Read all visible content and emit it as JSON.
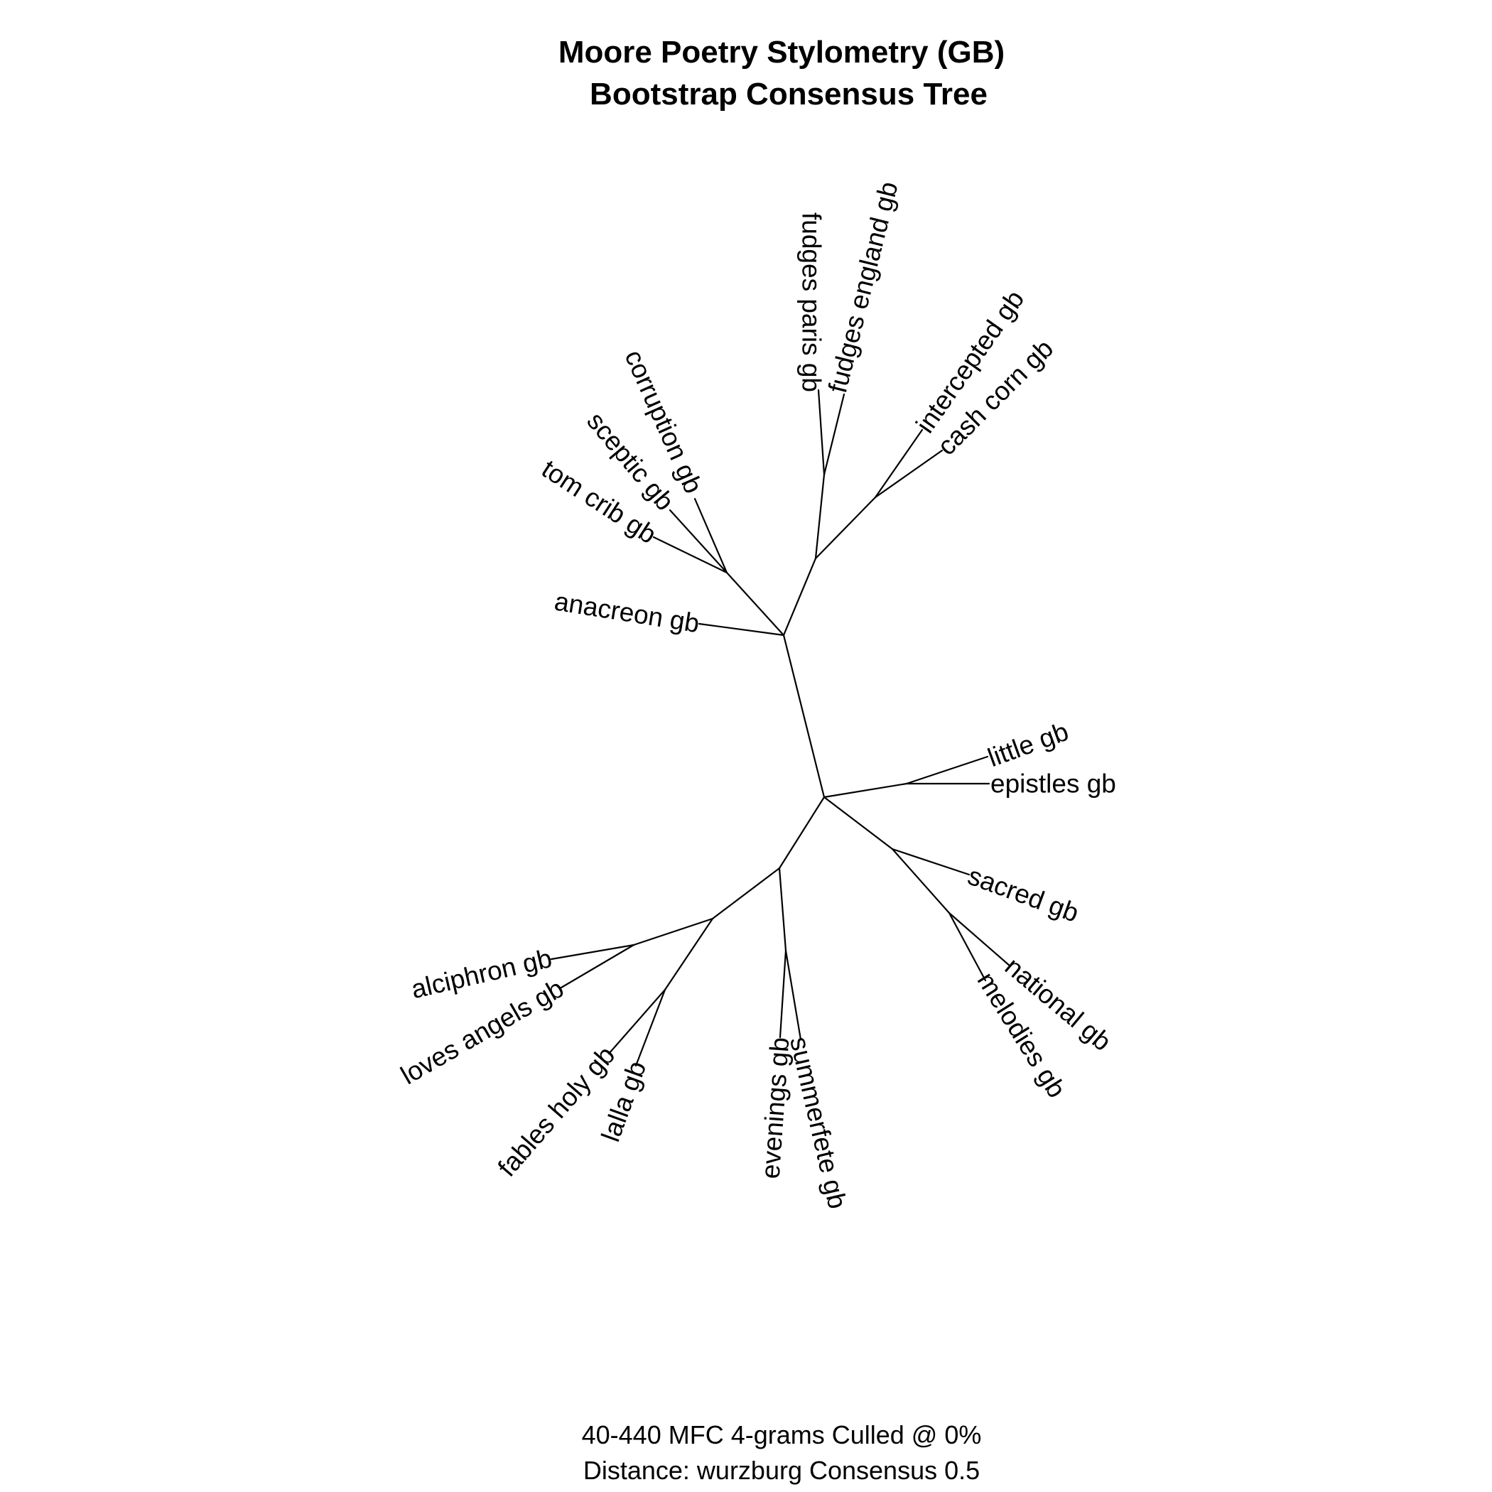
{
  "title": {
    "line1": "Moore Poetry Stylometry (GB)",
    "line2": "Bootstrap Consensus Tree"
  },
  "subtitle": {
    "line1": "40-440 MFC 4-grams Culled @ 0%",
    "line2": "Distance: wurzburg Consensus 0.5"
  },
  "leaves": {
    "fudges_paris": "fudges paris gb",
    "fudges_england": "fudges england gb",
    "intercepted": "intercepted gb",
    "cash_corn": "cash corn gb",
    "corruption": "corruption gb",
    "sceptic": "sceptic gb",
    "tom_crib": "tom crib gb",
    "anacreon": "anacreon gb",
    "little": "little gb",
    "epistles": "epistles gb",
    "sacred": "sacred gb",
    "national": "national gb",
    "melodies": "melodies gb",
    "alciphron": "alciphron gb",
    "loves_angels": "loves angels gb",
    "fables_holy": "fables holy gb",
    "lalla": "lalla gb",
    "evenings": "evenings gb",
    "summerfete": "summerfete gb"
  }
}
